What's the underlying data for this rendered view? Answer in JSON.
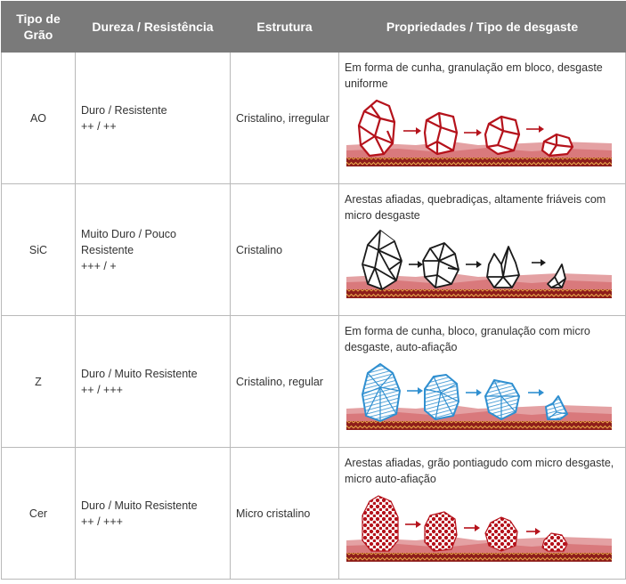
{
  "header": {
    "grain_line1": "Tipo de",
    "grain_line2": "Grão",
    "hardness": "Dureza / Resistência",
    "structure": "Estrutura",
    "properties": "Propriedades / Tipo de desgaste"
  },
  "rows": [
    {
      "grain": "AO",
      "hardness_line1": "Duro / Resistente",
      "hardness_line2": "++ / ++",
      "structure": "Cristalino, irregular",
      "description": "Em forma de cunha, granulação em bloco, desgaste uniforme",
      "grain_color": "#b5121b"
    },
    {
      "grain": "SiC",
      "hardness_line1": "Muito Duro / Pouco",
      "hardness_line2": "Resistente",
      "hardness_line3": "+++ / +",
      "structure": "Cristalino",
      "description": "Arestas afiadas, quebradiças, altamente friáveis com micro desgaste",
      "grain_color": "#1a1a1a"
    },
    {
      "grain": "Z",
      "hardness_line1": "Duro / Muito Resistente",
      "hardness_line2": "++ / +++",
      "structure": "Cristalino, regular",
      "description": "Em forma de cunha, bloco, granulação com micro desgaste, auto-afiação",
      "grain_color": "#2f8fd0"
    },
    {
      "grain": "Cer",
      "hardness_line1": "Duro / Muito Resistente",
      "hardness_line2": "++ / +++",
      "structure": "Micro cristalino",
      "description": "Arestas afiadas, grão pontiagudo com micro desgaste, micro auto-afiação",
      "grain_color": "#b5121b"
    }
  ],
  "colors": {
    "header_bg": "#7a7a7a",
    "bond": "#d9797c",
    "base_dark": "#8e1d1a",
    "base_zigzag": "#e8a84a"
  }
}
